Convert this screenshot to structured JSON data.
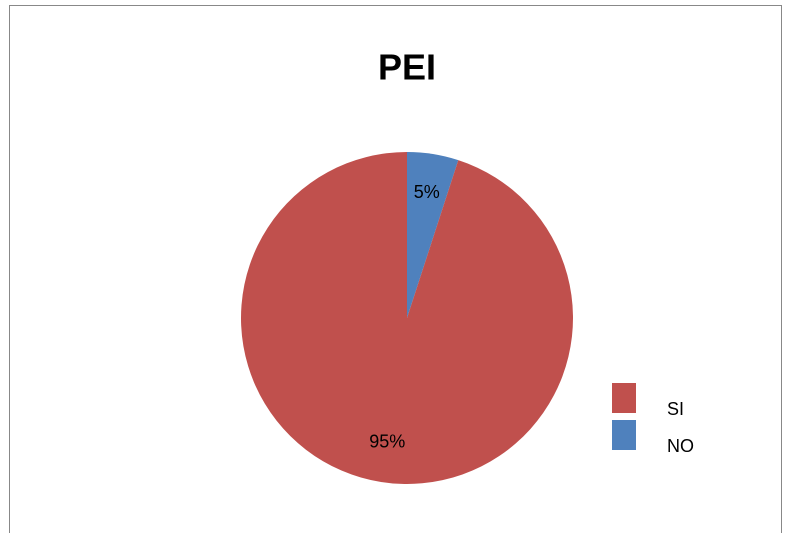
{
  "chart_data": {
    "type": "pie",
    "title": "PEI",
    "categories": [
      "SI",
      "NO"
    ],
    "values": [
      95,
      5
    ],
    "value_labels": [
      "95%",
      "5%"
    ],
    "colors": [
      "#c0504d",
      "#4f81bd"
    ],
    "legend": "right"
  }
}
